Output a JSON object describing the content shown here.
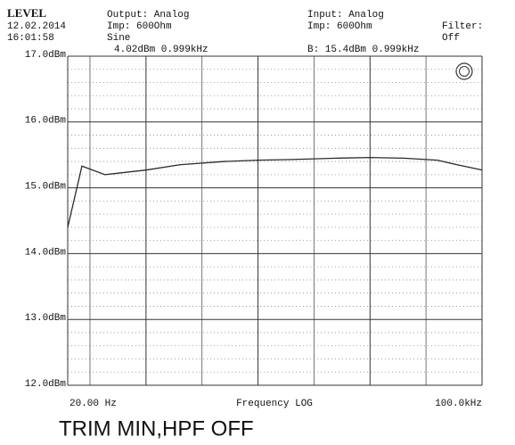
{
  "header": {
    "mode": "LEVEL",
    "date": "12.02.2014",
    "time": "16:01:58",
    "output": "Output: Analog",
    "output_imp": "Imp: 600Ohm",
    "waveform": "Sine",
    "generator": "4.02dBm 0.999kHz",
    "input": "Input: Analog",
    "input_imp": "Imp: 600Ohm",
    "reading": "B: 15.4dBm 0.999kHz",
    "filter_label": "Filter:",
    "filter": "Off"
  },
  "chart_data": {
    "type": "line",
    "x_label": "Frequency LOG",
    "log_x": true,
    "color": "#2a2a2a",
    "x": [
      20,
      26.8,
      43,
      100,
      200,
      500,
      1000,
      2000,
      5000,
      10000,
      20000,
      40000,
      60000,
      100000
    ],
    "values": [
      14.4,
      15.33,
      15.2,
      15.27,
      15.35,
      15.4,
      15.42,
      15.43,
      15.45,
      15.46,
      15.45,
      15.42,
      15.35,
      15.27
    ],
    "xlim": [
      20,
      100000
    ],
    "ylim": [
      12,
      17
    ],
    "xticks": [
      {
        "value": 20,
        "label": "20.00 Hz"
      },
      {
        "value": 100000,
        "label": "100.0kHz"
      }
    ],
    "xgrid": [
      100,
      1000,
      10000
    ],
    "yticks": [
      {
        "value": 12,
        "label": "12.0dBm"
      },
      {
        "value": 13,
        "label": "13.0dBm"
      },
      {
        "value": 14,
        "label": "14.0dBm"
      },
      {
        "value": 15,
        "label": "15.0dBm"
      },
      {
        "value": 16,
        "label": "16.0dBm"
      },
      {
        "value": 17,
        "label": "17.0dBm"
      }
    ],
    "grid": true
  },
  "caption": "TRIM MIN,HPF OFF"
}
